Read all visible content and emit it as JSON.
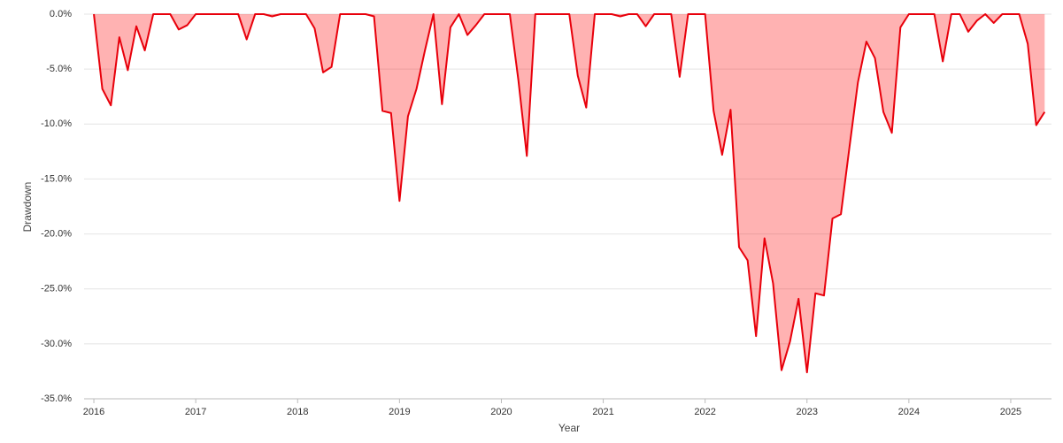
{
  "chart_data": {
    "type": "area",
    "x_label": "Year",
    "y_label": "Drawdown",
    "color": "#e8000b",
    "fill": "rgba(255,0,0,0.3)",
    "grid": true,
    "xlim": [
      2015.904,
      2025.4
    ],
    "xticks": [
      2016,
      2017,
      2018,
      2019,
      2020,
      2021,
      2022,
      2023,
      2024,
      2025
    ],
    "ylim": [
      -35,
      0
    ],
    "yticks": [
      {
        "value": 0,
        "label": "0.0%"
      },
      {
        "value": -5,
        "label": "-5.0%"
      },
      {
        "value": -10,
        "label": "-10.0%"
      },
      {
        "value": -15,
        "label": "-15.0%"
      },
      {
        "value": -20,
        "label": "-20.0%"
      },
      {
        "value": -25,
        "label": "-25.0%"
      },
      {
        "value": -30,
        "label": "-30.0%"
      },
      {
        "value": -35,
        "label": "-35.0%"
      }
    ],
    "x": [
      2016,
      2016.083,
      2016.167,
      2016.25,
      2016.333,
      2016.417,
      2016.5,
      2016.583,
      2016.667,
      2016.75,
      2016.833,
      2016.917,
      2017,
      2017.083,
      2017.167,
      2017.25,
      2017.333,
      2017.417,
      2017.5,
      2017.583,
      2017.667,
      2017.75,
      2017.833,
      2017.917,
      2018,
      2018.083,
      2018.167,
      2018.25,
      2018.333,
      2018.417,
      2018.5,
      2018.583,
      2018.667,
      2018.75,
      2018.833,
      2018.917,
      2019,
      2019.083,
      2019.167,
      2019.25,
      2019.333,
      2019.417,
      2019.5,
      2019.583,
      2019.667,
      2019.75,
      2019.833,
      2019.917,
      2020,
      2020.083,
      2020.167,
      2020.25,
      2020.333,
      2020.417,
      2020.5,
      2020.583,
      2020.667,
      2020.75,
      2020.833,
      2020.917,
      2021,
      2021.083,
      2021.167,
      2021.25,
      2021.333,
      2021.417,
      2021.5,
      2021.583,
      2021.667,
      2021.75,
      2021.833,
      2021.917,
      2022,
      2022.083,
      2022.167,
      2022.25,
      2022.333,
      2022.417,
      2022.5,
      2022.583,
      2022.667,
      2022.75,
      2022.833,
      2022.917,
      2023,
      2023.083,
      2023.167,
      2023.25,
      2023.333,
      2023.417,
      2023.5,
      2023.583,
      2023.667,
      2023.75,
      2023.833,
      2023.917,
      2024,
      2024.083,
      2024.167,
      2024.25,
      2024.333,
      2024.417,
      2024.5,
      2024.583,
      2024.667,
      2024.75,
      2024.833,
      2024.917,
      2025,
      2025.083,
      2025.167,
      2025.25,
      2025.333
    ],
    "values": [
      0,
      -6.8,
      -8.3,
      -2.1,
      -5.1,
      -1.1,
      -3.3,
      0,
      0,
      0,
      -1.4,
      -1.0,
      0,
      0,
      0,
      0,
      0,
      0,
      -2.3,
      0,
      0,
      -0.2,
      0,
      0,
      0,
      0,
      -1.3,
      -5.3,
      -4.8,
      0,
      0,
      0,
      0,
      -0.2,
      -8.8,
      -9.0,
      -17.0,
      -9.3,
      -6.8,
      -3.3,
      0,
      -8.2,
      -1.2,
      0,
      -1.9,
      -1.0,
      0,
      0,
      0,
      0,
      -6.0,
      -12.9,
      0,
      0,
      0,
      0,
      0,
      -5.6,
      -8.5,
      0,
      0,
      0,
      -0.2,
      0,
      0,
      -1.1,
      0,
      0,
      0,
      -5.7,
      0,
      0,
      0,
      -8.8,
      -12.8,
      -8.7,
      -21.2,
      -22.4,
      -29.3,
      -20.4,
      -24.5,
      -32.4,
      -29.8,
      -25.9,
      -32.6,
      -25.4,
      -25.6,
      -18.6,
      -18.2,
      -12.1,
      -6.2,
      -2.5,
      -4.0,
      -8.9,
      -10.8,
      -1.2,
      0,
      0,
      0,
      0,
      -4.3,
      0,
      0,
      -1.6,
      -0.6,
      0,
      -0.8,
      0,
      0,
      0,
      -2.7,
      -10.1,
      -8.9
    ]
  }
}
